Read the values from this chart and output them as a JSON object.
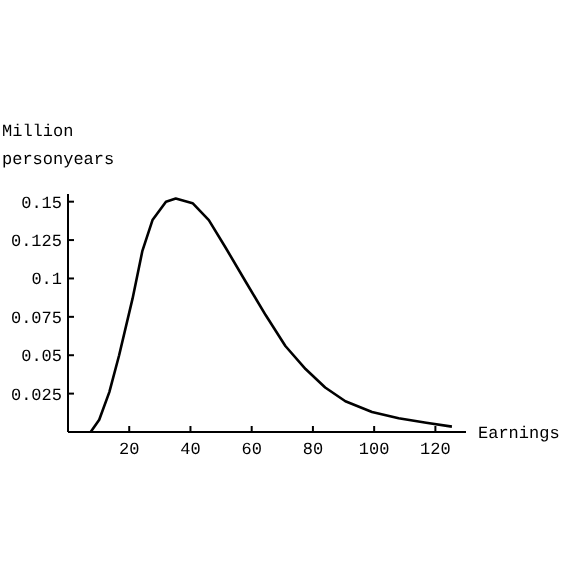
{
  "chart_data": {
    "type": "line",
    "ylabel": "Million\npersonyears",
    "xlabel": "Earnings",
    "x": [
      7.4,
      10.2,
      13.5,
      16.7,
      21.1,
      24.3,
      27.6,
      32,
      35.2,
      40.7,
      46,
      51.5,
      58,
      64.6,
      71,
      77.6,
      84,
      90.6,
      99.3,
      108,
      117,
      125.4
    ],
    "values": [
      0,
      0.008,
      0.026,
      0.05,
      0.087,
      0.118,
      0.138,
      0.15,
      0.152,
      0.149,
      0.138,
      0.12,
      0.098,
      0.076,
      0.056,
      0.041,
      0.029,
      0.02,
      0.013,
      0.009,
      0.006,
      0.0035
    ],
    "color": "#000000",
    "xlim": [
      0,
      130
    ],
    "ylim": [
      0,
      0.155
    ],
    "xticks": [
      20,
      40,
      60,
      80,
      100,
      120
    ],
    "yticks": [
      0.025,
      0.05,
      0.075,
      0.1,
      0.125,
      0.15
    ],
    "grid": false,
    "marker": "none",
    "line_style": "solid"
  }
}
